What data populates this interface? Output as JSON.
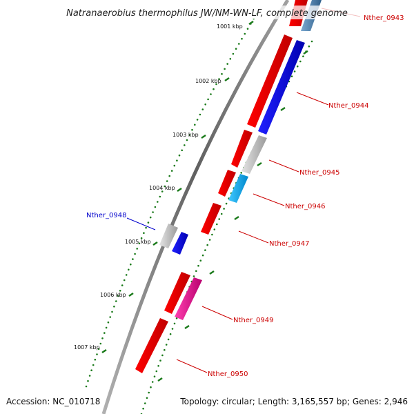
{
  "title": "Natranaerobius thermophilus JW/NM-WN-LF, complete genome",
  "footer": {
    "accession": "Accession: NC_010718",
    "topology": "Topology: circular; Length: 3,165,557 bp; Genes: 2,946"
  },
  "colors": {
    "backbone": "#808080",
    "tick": "#1a7a1a",
    "forward_label": "#cc0000",
    "reverse_label": "#0000cc"
  },
  "scale": {
    "ticks": [
      {
        "label": "1001 kbp"
      },
      {
        "label": "1002 kbp"
      },
      {
        "label": "1003 kbp"
      },
      {
        "label": "1004 kbp"
      },
      {
        "label": "1005 kbp"
      },
      {
        "label": "1006 kbp"
      },
      {
        "label": "1007 kbp"
      }
    ]
  },
  "genes": [
    {
      "id": "Nther_0943",
      "strand": "forward",
      "color": "#ff0000",
      "label_color": "#cc0000"
    },
    {
      "id": "Nther_0944",
      "strand": "forward",
      "color": "#ff0000",
      "label_color": "#cc0000"
    },
    {
      "id": "Nther_0945",
      "strand": "forward",
      "color": "#ff0000",
      "label_color": "#cc0000"
    },
    {
      "id": "Nther_0946",
      "strand": "forward",
      "color": "#ff0000",
      "label_color": "#cc0000"
    },
    {
      "id": "Nther_0947",
      "strand": "forward",
      "color": "#ff0000",
      "label_color": "#cc0000"
    },
    {
      "id": "Nther_0948",
      "strand": "reverse",
      "color": "#0000ff",
      "label_color": "#0000cc"
    },
    {
      "id": "Nther_0949",
      "strand": "forward",
      "color": "#ff0000",
      "label_color": "#cc0000"
    },
    {
      "id": "Nther_0950",
      "strand": "forward",
      "color": "#ff0000",
      "label_color": "#cc0000"
    }
  ],
  "feature_colors": {
    "cds_red": "#ff0000",
    "cds_blue": "#0000ff",
    "cds_gray": "#b8b8b8",
    "cds_cyan": "#00aaff",
    "cds_magenta": "#ee0099",
    "cds_steelblue": "#4682b4"
  }
}
